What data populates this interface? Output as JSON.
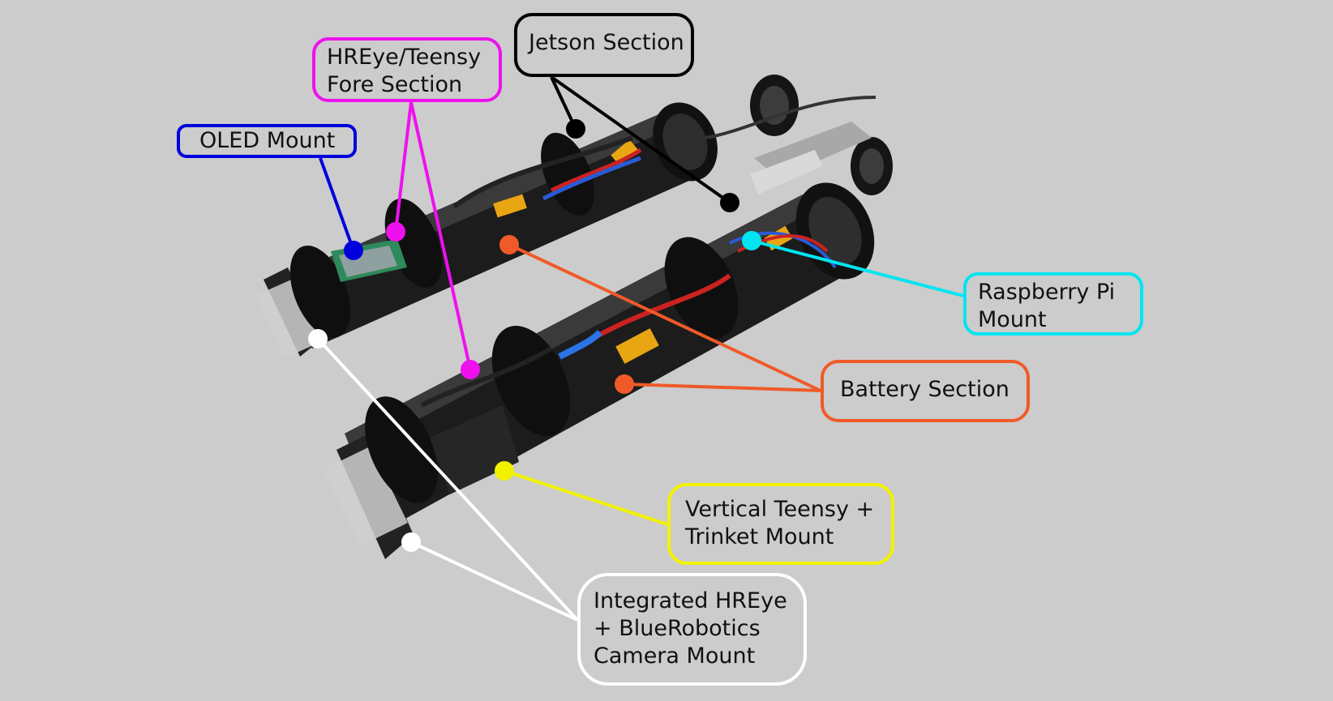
{
  "colors": {
    "background": "#cccccc",
    "jetson": "#000000",
    "hreye_teensy": "#ee11ee",
    "oled": "#0000dd",
    "battery": "#f05a28",
    "raspberry_pi": "#00e5f0",
    "vertical_teensy": "#f2f200",
    "camera_mount": "#ffffff"
  },
  "callouts": {
    "jetson": {
      "lines": [
        "Jetson Section"
      ]
    },
    "hreye_teensy": {
      "lines": [
        "HREye/Teensy",
        "Fore Section"
      ]
    },
    "oled": {
      "lines": [
        "OLED Mount"
      ]
    },
    "raspberry_pi": {
      "lines": [
        "Raspberry Pi",
        "Mount"
      ]
    },
    "battery": {
      "lines": [
        "Battery Section"
      ]
    },
    "vertical_teensy": {
      "lines": [
        "Vertical Teensy +",
        "Trinket Mount"
      ]
    },
    "camera_mount": {
      "lines": [
        "Integrated HREye",
        "+ BlueRobotics",
        "Camera Mount"
      ]
    }
  },
  "photo": {
    "subject": "two-robot-hulls"
  }
}
